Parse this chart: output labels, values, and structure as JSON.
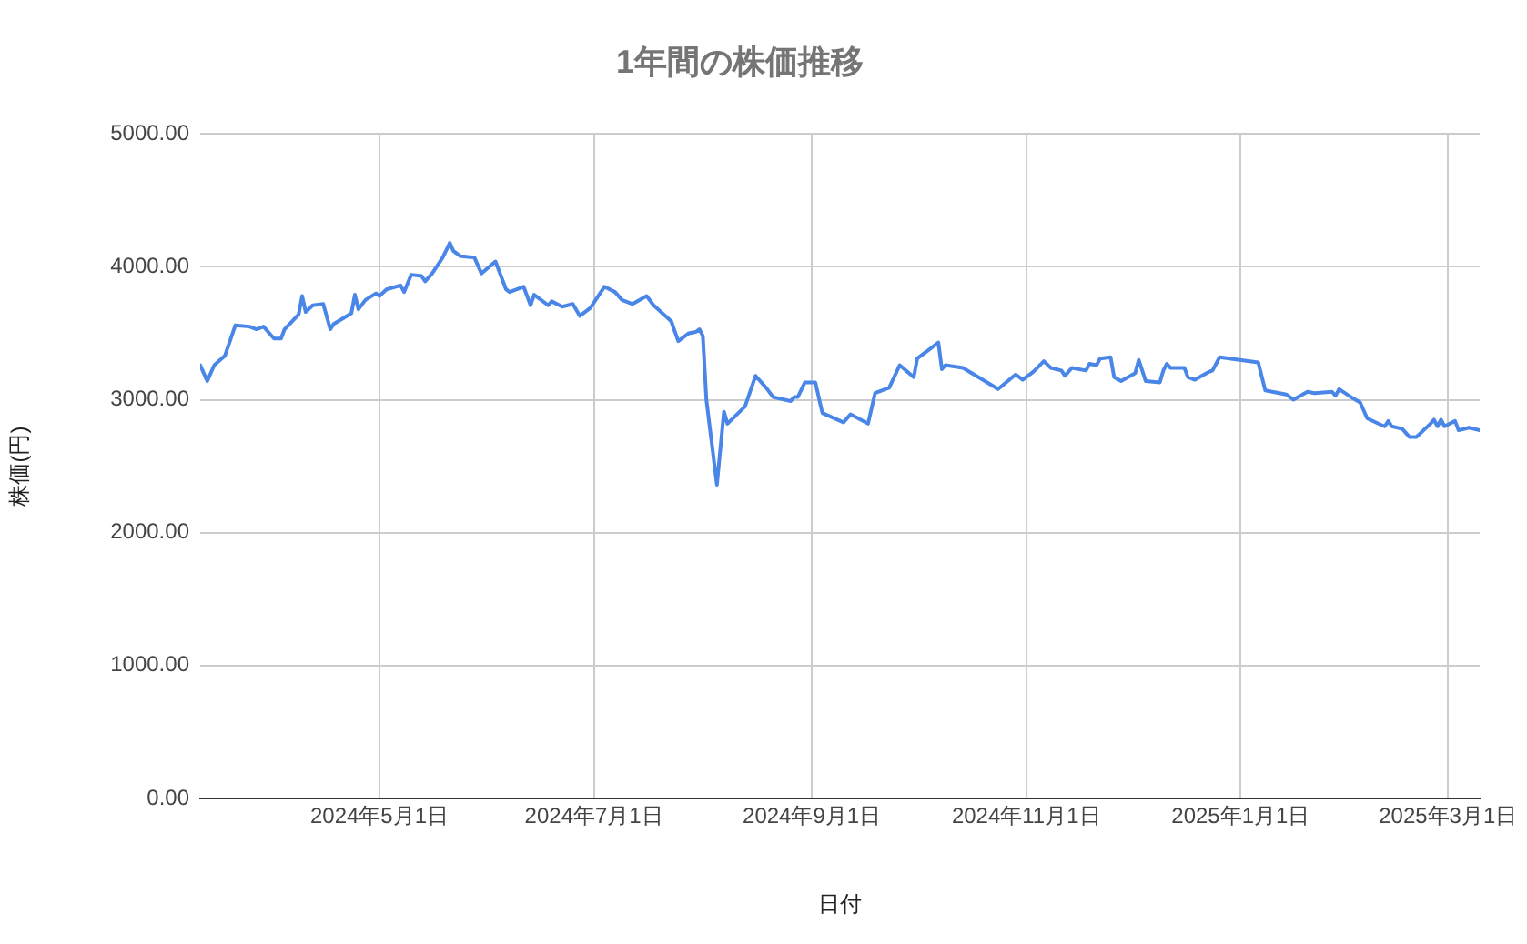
{
  "chart_data": {
    "type": "line",
    "title": "1年間の株価推移",
    "xlabel": "日付",
    "ylabel": "株価(円)",
    "x": [
      "2024-03-11",
      "2024-03-13",
      "2024-03-15",
      "2024-03-18",
      "2024-03-21",
      "2024-03-25",
      "2024-03-27",
      "2024-03-29",
      "2024-04-01",
      "2024-04-03",
      "2024-04-04",
      "2024-04-08",
      "2024-04-09",
      "2024-04-10",
      "2024-04-12",
      "2024-04-15",
      "2024-04-17",
      "2024-04-18",
      "2024-04-23",
      "2024-04-24",
      "2024-04-25",
      "2024-04-27",
      "2024-04-30",
      "2024-05-01",
      "2024-05-03",
      "2024-05-07",
      "2024-05-08",
      "2024-05-10",
      "2024-05-13",
      "2024-05-14",
      "2024-05-16",
      "2024-05-19",
      "2024-05-21",
      "2024-05-22",
      "2024-05-24",
      "2024-05-28",
      "2024-05-30",
      "2024-06-03",
      "2024-06-06",
      "2024-06-07",
      "2024-06-11",
      "2024-06-13",
      "2024-06-14",
      "2024-06-18",
      "2024-06-19",
      "2024-06-22",
      "2024-06-25",
      "2024-06-27",
      "2024-06-30",
      "2024-07-02",
      "2024-07-04",
      "2024-07-07",
      "2024-07-09",
      "2024-07-12",
      "2024-07-16",
      "2024-07-18",
      "2024-07-23",
      "2024-07-25",
      "2024-07-28",
      "2024-07-30",
      "2024-07-31",
      "2024-08-01",
      "2024-08-02",
      "2024-08-05",
      "2024-08-07",
      "2024-08-08",
      "2024-08-13",
      "2024-08-16",
      "2024-08-19",
      "2024-08-21",
      "2024-08-26",
      "2024-08-27",
      "2024-08-28",
      "2024-08-30",
      "2024-09-02",
      "2024-09-04",
      "2024-09-10",
      "2024-09-12",
      "2024-09-17",
      "2024-09-19",
      "2024-09-23",
      "2024-09-26",
      "2024-09-30",
      "2024-10-01",
      "2024-10-07",
      "2024-10-08",
      "2024-10-09",
      "2024-10-14",
      "2024-10-24",
      "2024-10-29",
      "2024-10-31",
      "2024-11-01",
      "2024-11-03",
      "2024-11-06",
      "2024-11-08",
      "2024-11-11",
      "2024-11-12",
      "2024-11-14",
      "2024-11-18",
      "2024-11-19",
      "2024-11-21",
      "2024-11-22",
      "2024-11-25",
      "2024-11-26",
      "2024-11-28",
      "2024-12-02",
      "2024-12-03",
      "2024-12-05",
      "2024-12-09",
      "2024-12-10",
      "2024-12-11",
      "2024-12-12",
      "2024-12-16",
      "2024-12-17",
      "2024-12-19",
      "2024-12-23",
      "2024-12-24",
      "2024-12-26",
      "2025-01-06",
      "2025-01-08",
      "2025-01-10",
      "2025-01-14",
      "2025-01-16",
      "2025-01-20",
      "2025-01-22",
      "2025-01-27",
      "2025-01-28",
      "2025-01-29",
      "2025-02-02",
      "2025-02-04",
      "2025-02-06",
      "2025-02-10",
      "2025-02-11",
      "2025-02-12",
      "2025-02-13",
      "2025-02-16",
      "2025-02-18",
      "2025-02-20",
      "2025-02-24",
      "2025-02-25",
      "2025-02-26",
      "2025-02-27",
      "2025-02-28",
      "2025-03-03",
      "2025-03-04",
      "2025-03-07",
      "2025-03-10"
    ],
    "series": [
      {
        "color": "#4a86e8",
        "values": [
          3260,
          3140,
          3260,
          3330,
          3560,
          3550,
          3530,
          3550,
          3460,
          3460,
          3530,
          3640,
          3780,
          3660,
          3710,
          3720,
          3530,
          3570,
          3650,
          3790,
          3680,
          3750,
          3800,
          3780,
          3830,
          3860,
          3810,
          3940,
          3930,
          3890,
          3950,
          4070,
          4180,
          4120,
          4080,
          4070,
          3950,
          4040,
          3830,
          3810,
          3850,
          3710,
          3790,
          3710,
          3740,
          3700,
          3720,
          3630,
          3690,
          3770,
          3850,
          3810,
          3750,
          3720,
          3780,
          3710,
          3590,
          3440,
          3500,
          3510,
          3530,
          3480,
          3000,
          2360,
          2910,
          2820,
          2950,
          3180,
          3090,
          3020,
          2990,
          3020,
          3020,
          3130,
          3130,
          2900,
          2830,
          2890,
          2820,
          3050,
          3090,
          3260,
          3170,
          3310,
          3430,
          3230,
          3260,
          3240,
          3080,
          3190,
          3150,
          3170,
          3210,
          3290,
          3240,
          3220,
          3180,
          3240,
          3220,
          3270,
          3260,
          3310,
          3320,
          3170,
          3140,
          3200,
          3300,
          3140,
          3130,
          3220,
          3270,
          3240,
          3240,
          3170,
          3150,
          3210,
          3220,
          3320,
          3280,
          3070,
          3060,
          3040,
          3000,
          3060,
          3050,
          3060,
          3030,
          3080,
          3010,
          2980,
          2860,
          2810,
          2800,
          2840,
          2800,
          2780,
          2720,
          2720,
          2820,
          2850,
          2800,
          2850,
          2800,
          2840,
          2770,
          2790,
          2770
        ]
      }
    ],
    "xlim": [
      "2024-03-11",
      "2025-03-10"
    ],
    "xticks": [
      {
        "value": "2024-05-01",
        "label": "2024年5月1日"
      },
      {
        "value": "2024-07-01",
        "label": "2024年7月1日"
      },
      {
        "value": "2024-09-01",
        "label": "2024年9月1日"
      },
      {
        "value": "2024-11-01",
        "label": "2024年11月1日"
      },
      {
        "value": "2025-01-01",
        "label": "2025年1月1日"
      },
      {
        "value": "2025-03-01",
        "label": "2025年3月1日"
      }
    ],
    "ylim": [
      0,
      5000
    ],
    "yticks": [
      {
        "value": 0,
        "label": "0.00"
      },
      {
        "value": 1000,
        "label": "1000.00"
      },
      {
        "value": 2000,
        "label": "2000.00"
      },
      {
        "value": 3000,
        "label": "3000.00"
      },
      {
        "value": 4000,
        "label": "4000.00"
      },
      {
        "value": 5000,
        "label": "5000.00"
      }
    ],
    "grid": true,
    "legend": false,
    "marker": "none",
    "line_style": "solid"
  }
}
